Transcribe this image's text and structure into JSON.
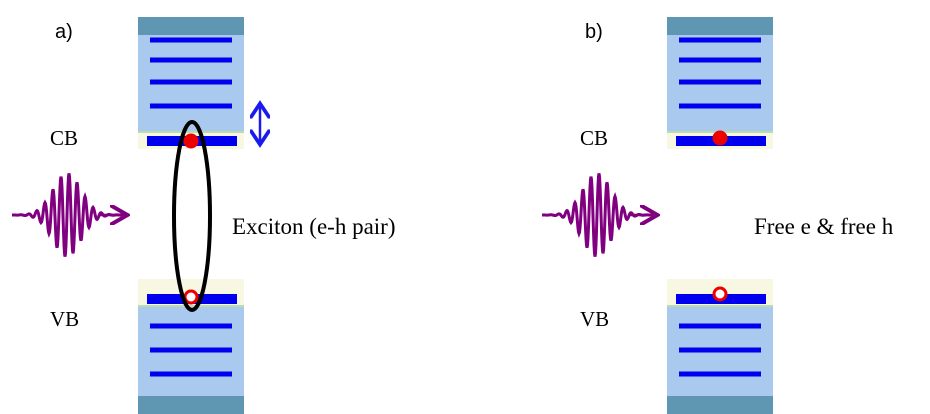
{
  "panels": [
    {
      "label": "a)",
      "cb": "CB",
      "vb": "VB",
      "caption": "Exciton (e-h pair)"
    },
    {
      "label": "b)",
      "cb": "CB",
      "vb": "VB",
      "caption": "Free e & free h"
    }
  ]
}
